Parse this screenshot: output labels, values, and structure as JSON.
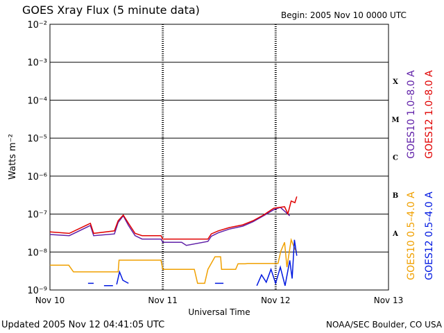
{
  "chart_data": {
    "type": "line",
    "title": "GOES Xray Flux (5 minute data)",
    "subtitle": "Begin:  2005 Nov 10 0000 UTC",
    "y_label": "Watts m⁻²",
    "x_label": "Universal Time",
    "footer_left": "Updated 2005 Nov 12 04:41:05 UTC",
    "footer_right": "NOAA/SEC Boulder, CO USA",
    "log_scale": true,
    "grid": true,
    "flare_classes": [
      "X",
      "M",
      "C",
      "B",
      "A"
    ],
    "xlim": [
      0,
      72
    ],
    "xticks": [
      {
        "value": 0,
        "label": "Nov 10"
      },
      {
        "value": 24,
        "label": "Nov 11"
      },
      {
        "value": 48,
        "label": "Nov 12"
      },
      {
        "value": 72,
        "label": "Nov 13"
      }
    ],
    "ylim": [
      1e-09,
      0.01
    ],
    "yticks": [
      {
        "value": 1e-09,
        "label": "10⁻⁹"
      },
      {
        "value": 1e-08,
        "label": "10⁻⁸"
      },
      {
        "value": 1e-07,
        "label": "10⁻⁷"
      },
      {
        "value": 1e-06,
        "label": "10⁻⁶"
      },
      {
        "value": 1e-05,
        "label": "10⁻⁵"
      },
      {
        "value": 0.0001,
        "label": "10⁻⁴"
      },
      {
        "value": 0.001,
        "label": "10⁻³"
      },
      {
        "value": 0.01,
        "label": "10⁻²"
      }
    ],
    "series": [
      {
        "name": "GOES10 1.0–8.0 A",
        "color": "#6020a8",
        "x": [
          0,
          4.1,
          8.6,
          9.3,
          13.7,
          14.5,
          15.6,
          16.7,
          18.1,
          19.6,
          23.6,
          24.0,
          28,
          29,
          33.6,
          34.3,
          35.8,
          38.1,
          41.0,
          43.2,
          45.4,
          47.6,
          49.0,
          51.0
        ],
        "values": [
          2.9e-08,
          2.7e-08,
          5e-08,
          2.7e-08,
          3e-08,
          6e-08,
          9e-08,
          5e-08,
          2.7e-08,
          2.2e-08,
          2.2e-08,
          1.8e-08,
          1.8e-08,
          1.5e-08,
          1.9e-08,
          2.6e-08,
          3.2e-08,
          4e-08,
          4.8e-08,
          6.3e-08,
          9e-08,
          1.3e-07,
          1.5e-07,
          9e-08
        ]
      },
      {
        "name": "GOES12 1.0–8.0 A",
        "color": "#e00000",
        "x": [
          0,
          4.1,
          8.6,
          9.3,
          13.7,
          14.5,
          15.6,
          16.7,
          18.1,
          19.6,
          23.6,
          24.0,
          33.6,
          34.3,
          35.8,
          38.1,
          41.0,
          43.2,
          45.4,
          47.6,
          49.9,
          50.6,
          51.3,
          52.1,
          52.5
        ],
        "values": [
          3.4e-08,
          3.1e-08,
          5.7e-08,
          3.1e-08,
          3.6e-08,
          6.7e-08,
          9.4e-08,
          5.7e-08,
          3.1e-08,
          2.7e-08,
          2.7e-08,
          2.2e-08,
          2.2e-08,
          3e-08,
          3.6e-08,
          4.4e-08,
          5.2e-08,
          6.7e-08,
          9.4e-08,
          1.43e-07,
          1.56e-07,
          1.02e-07,
          2.2e-07,
          2e-07,
          2.9e-07
        ]
      },
      {
        "name": "GOES10 0.5–4.0 A",
        "color": "#f0a000",
        "x": [
          0,
          4,
          5,
          14.5,
          14.7,
          23.6,
          24,
          30.7,
          31.4,
          32.9,
          33.6,
          35.1,
          36.3,
          36.5,
          39.5,
          40,
          41.5,
          42,
          48.5,
          49.1,
          49.9,
          50.4,
          51.3,
          52.1,
          52.5
        ],
        "values": [
          4.5e-09,
          4.5e-09,
          3e-09,
          3e-09,
          6.1e-09,
          6.1e-09,
          3.5e-09,
          3.5e-09,
          1.5e-09,
          1.5e-09,
          3.5e-09,
          7.5e-09,
          7.5e-09,
          3.5e-09,
          3.5e-09,
          4.9e-09,
          4.9e-09,
          5e-09,
          5e-09,
          1.05e-08,
          1.8e-08,
          4e-09,
          2.1e-08,
          1.2e-08,
          1e-08
        ]
      },
      {
        "name": "GOES12 0.5–4.0 A",
        "color": "#0018e0",
        "x": [
          8.1,
          9.3,
          9.4,
          11.5,
          13.4,
          13.5,
          14.2,
          14.8,
          15.5,
          16.7,
          16.8,
          35.1,
          36.9,
          37,
          44,
          45,
          46,
          47,
          48,
          49,
          50,
          51,
          51.5,
          52,
          52.5
        ],
        "values": [
          1.5e-09,
          1.5e-09,
          null,
          1.3e-09,
          1.3e-09,
          null,
          1.4e-09,
          3e-09,
          1.8e-09,
          1.5e-09,
          null,
          1.5e-09,
          1.5e-09,
          null,
          1.3e-09,
          2.5e-09,
          1.6e-09,
          3.5e-09,
          1.5e-09,
          4e-09,
          1.3e-09,
          6e-09,
          2e-09,
          2.1e-08,
          8e-09
        ]
      }
    ]
  }
}
